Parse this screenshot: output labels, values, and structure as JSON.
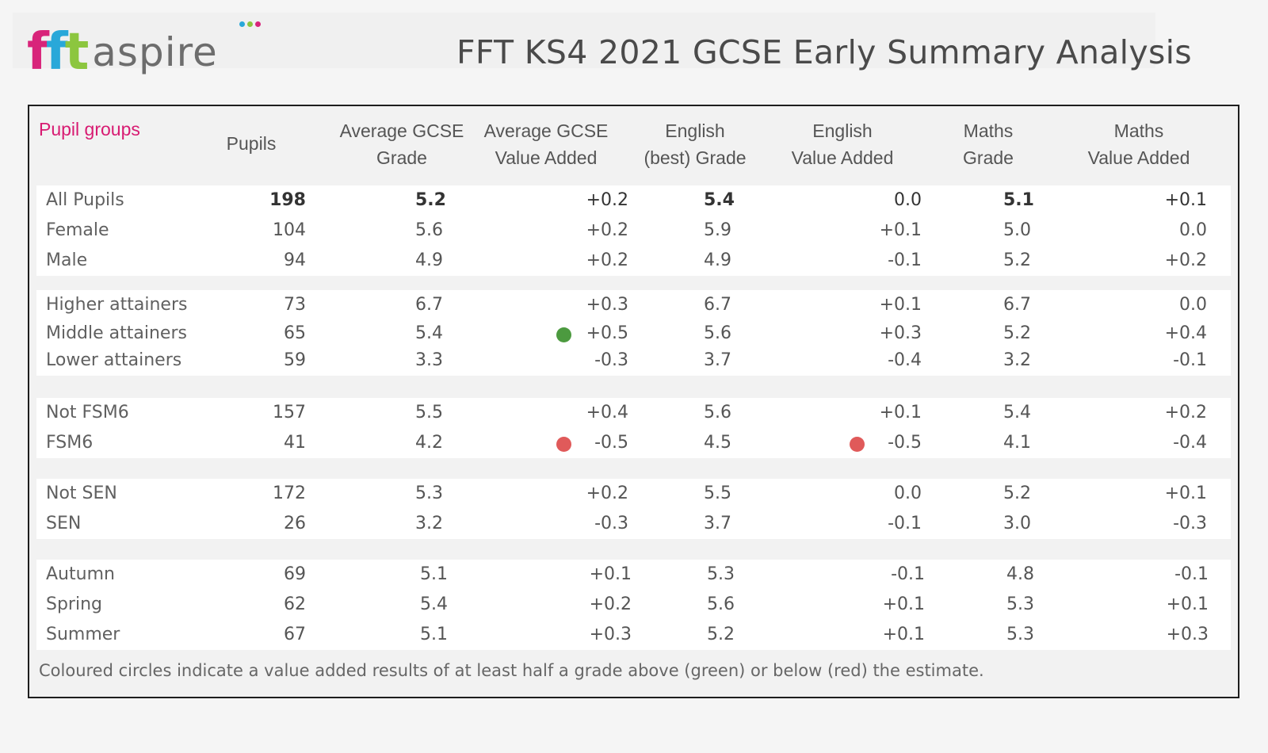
{
  "brand": {
    "logo_text_fft": "fft",
    "logo_text_aspire": "aspire",
    "colors": {
      "magenta": "#d8247a",
      "blue": "#29a8d9",
      "green": "#8cc63f",
      "grey": "#6d6d6d"
    }
  },
  "title": "FFT KS4 2021 GCSE Early Summary Analysis",
  "table": {
    "header": {
      "pupil_groups": "Pupil groups",
      "pupils": "Pupils",
      "avg_grade_1": "Average GCSE",
      "avg_grade_2": "Grade",
      "avg_va_1": "Average GCSE",
      "avg_va_2": "Value Added",
      "eng_grade_1": "English",
      "eng_grade_2": "(best) Grade",
      "eng_va_1": "English",
      "eng_va_2": "Value Added",
      "maths_grade_1": "Maths",
      "maths_grade_2": "Grade",
      "maths_va_1": "Maths",
      "maths_va_2": "Value Added"
    },
    "groups": [
      [
        {
          "name": "All Pupils",
          "pupils": "198",
          "avg": "5.2",
          "va": "+0.2",
          "eng": "5.4",
          "engva": "0.0",
          "maths": "5.1",
          "mathsva": "+0.1"
        },
        {
          "name": "Female",
          "pupils": "104",
          "avg": "5.6",
          "va": "+0.2",
          "eng": "5.9",
          "engva": "+0.1",
          "maths": "5.0",
          "mathsva": "0.0"
        },
        {
          "name": "Male",
          "pupils": "94",
          "avg": "4.9",
          "va": "+0.2",
          "eng": "4.9",
          "engva": "-0.1",
          "maths": "5.2",
          "mathsva": "+0.2"
        }
      ],
      [
        {
          "name": "Higher attainers",
          "pupils": "73",
          "avg": "6.7",
          "va": "+0.3",
          "eng": "6.7",
          "engva": "+0.1",
          "maths": "6.7",
          "mathsva": "0.0"
        },
        {
          "name": "Middle attainers",
          "pupils": "65",
          "avg": "5.4",
          "va": "+0.5",
          "eng": "5.6",
          "engva": "+0.3",
          "maths": "5.2",
          "mathsva": "+0.4"
        },
        {
          "name": "Lower attainers",
          "pupils": "59",
          "avg": "3.3",
          "va": "-0.3",
          "eng": "3.7",
          "engva": "-0.4",
          "maths": "3.2",
          "mathsva": "-0.1"
        }
      ],
      [
        {
          "name": "Not FSM6",
          "pupils": "157",
          "avg": "5.5",
          "va": "+0.4",
          "eng": "5.6",
          "engva": "+0.1",
          "maths": "5.4",
          "mathsva": "+0.2"
        },
        {
          "name": "FSM6",
          "pupils": "41",
          "avg": "4.2",
          "va": "-0.5",
          "eng": "4.5",
          "engva": "-0.5",
          "maths": "4.1",
          "mathsva": "-0.4"
        }
      ],
      [
        {
          "name": "Not SEN",
          "pupils": "172",
          "avg": "5.3",
          "va": "+0.2",
          "eng": "5.5",
          "engva": "0.0",
          "maths": "5.2",
          "mathsva": "+0.1"
        },
        {
          "name": "SEN",
          "pupils": "26",
          "avg": "3.2",
          "va": "-0.3",
          "eng": "3.7",
          "engva": "-0.1",
          "maths": "3.0",
          "mathsva": "-0.3"
        }
      ],
      [
        {
          "name": "Autumn",
          "pupils": "69",
          "avg": "5.1",
          "va": "+0.1",
          "eng": "5.3",
          "engva": "-0.1",
          "maths": "4.8",
          "mathsva": "-0.1"
        },
        {
          "name": "Spring",
          "pupils": "62",
          "avg": "5.4",
          "va": "+0.2",
          "eng": "5.6",
          "engva": "+0.1",
          "maths": "5.3",
          "mathsva": "+0.1"
        },
        {
          "name": "Summer",
          "pupils": "67",
          "avg": "5.1",
          "va": "+0.3",
          "eng": "5.2",
          "engva": "+0.1",
          "maths": "5.3",
          "mathsva": "+0.3"
        }
      ]
    ],
    "indicator_colors": {
      "above": "#4c9a3f",
      "below": "#e05a5a"
    },
    "footnote": "Coloured circles indicate a value added results of at least half a grade above (green) or below (red) the estimate."
  }
}
